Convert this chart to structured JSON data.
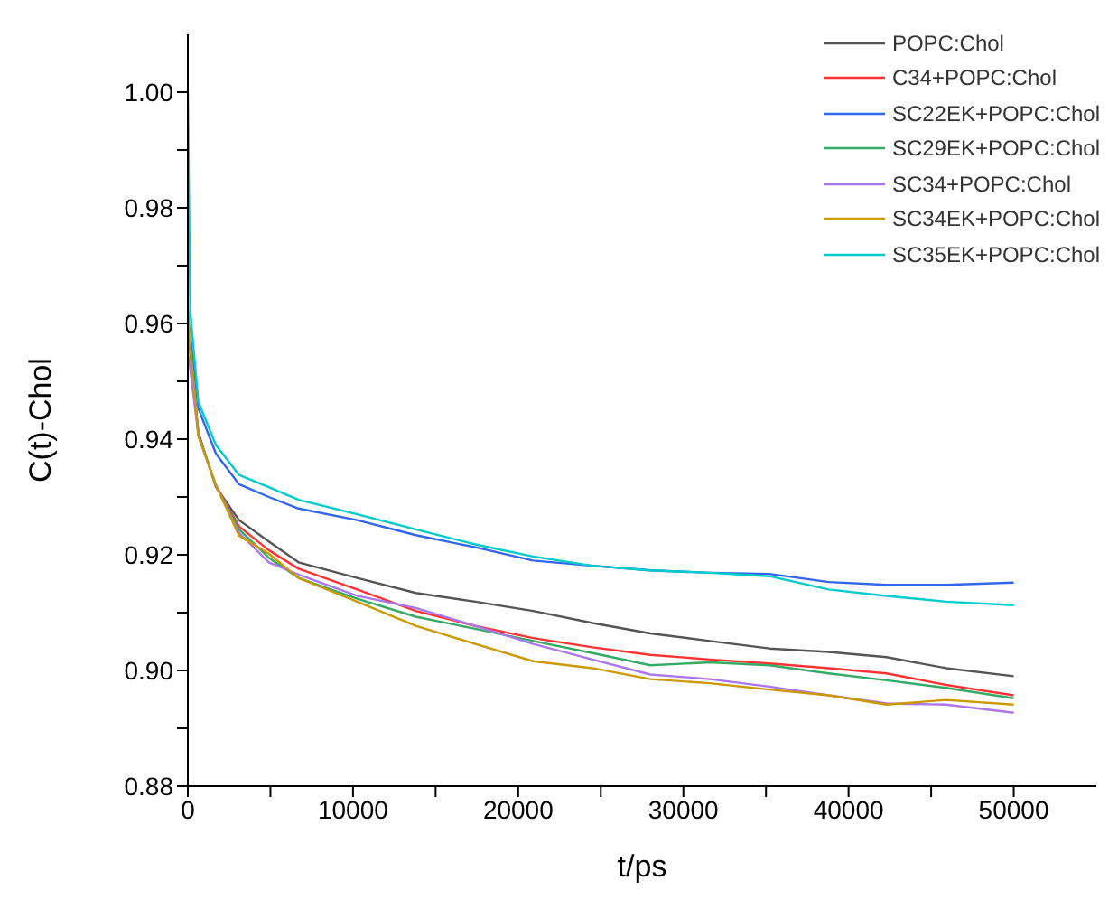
{
  "chart_data": {
    "type": "line",
    "xlabel": "t/ps",
    "ylabel": "C(t)-Chol",
    "x": [
      0,
      150,
      640,
      1700,
      3100,
      4900,
      6700,
      10250,
      13800,
      17400,
      20900,
      24500,
      28000,
      31600,
      35200,
      38800,
      42300,
      45900,
      50000
    ],
    "series": [
      {
        "name": "POPC:Chol",
        "color": "#555555",
        "values": [
          0.96,
          0.955,
          0.9411,
          0.9317,
          0.926,
          0.9223,
          0.9187,
          0.916,
          0.9134,
          0.9119,
          0.9103,
          0.9082,
          0.9064,
          0.9051,
          0.9038,
          0.9032,
          0.9023,
          0.9004,
          0.899
        ]
      },
      {
        "name": "C34+POPC:Chol",
        "color": "#ff3333",
        "values": [
          null,
          null,
          null,
          0.932,
          0.9249,
          0.9208,
          0.9176,
          0.914,
          0.9103,
          0.9077,
          0.9056,
          0.904,
          0.9027,
          0.9019,
          0.9012,
          0.9004,
          0.8995,
          0.8975,
          0.8957
        ]
      },
      {
        "name": "SC22EK+POPC:Chol",
        "color": "#3366ee",
        "values": [
          0.961,
          0.958,
          0.9453,
          0.9375,
          0.9322,
          0.93,
          0.928,
          0.926,
          0.9234,
          0.9213,
          0.919,
          0.9181,
          0.9173,
          0.9169,
          0.9167,
          0.9153,
          0.9148,
          0.9148,
          0.9152
        ]
      },
      {
        "name": "SC29EK+POPC:Chol",
        "color": "#33aa66",
        "values": [
          0.958,
          0.955,
          0.9406,
          0.932,
          0.9244,
          0.9195,
          0.916,
          0.9124,
          0.9093,
          0.9072,
          0.9051,
          0.903,
          0.9009,
          0.9014,
          0.9009,
          0.8995,
          0.8983,
          0.897,
          0.8952
        ]
      },
      {
        "name": "SC34+POPC:Chol",
        "color": "#aa77ee",
        "values": [
          0.955,
          0.952,
          0.9406,
          0.932,
          0.9238,
          0.9187,
          0.9166,
          0.9129,
          0.9108,
          0.9077,
          0.9046,
          0.9019,
          0.8993,
          0.8985,
          0.8972,
          0.8957,
          0.8943,
          0.8941,
          0.8927
        ]
      },
      {
        "name": "SC34EK+POPC:Chol",
        "color": "#cc9900",
        "values": [
          0.963,
          0.956,
          0.9406,
          0.932,
          0.9233,
          0.9202,
          0.916,
          0.9119,
          0.9077,
          0.9046,
          0.9016,
          0.9004,
          0.8985,
          0.8978,
          0.8967,
          0.8957,
          0.8941,
          0.8949,
          0.8941
        ]
      },
      {
        "name": "SC35EK+POPC:Chol",
        "color": "#00cccc",
        "values": [
          1.0,
          0.962,
          0.9464,
          0.939,
          0.9338,
          0.9317,
          0.9295,
          0.927,
          0.9244,
          0.9218,
          0.9197,
          0.9181,
          0.9173,
          0.9169,
          0.9163,
          0.914,
          0.9129,
          0.9119,
          0.9113
        ]
      }
    ],
    "xlim": [
      0,
      55000
    ],
    "xticks": [
      0,
      {
        "value": 5000,
        "label": null
      },
      10000,
      {
        "value": 15000,
        "label": null
      },
      20000,
      {
        "value": 25000,
        "label": null
      },
      30000,
      {
        "value": 35000,
        "label": null
      },
      40000,
      {
        "value": 45000,
        "label": null
      },
      50000
    ],
    "ylim": [
      0.88,
      1.01
    ],
    "yticks": [
      {
        "value": 0.88,
        "label": "0.88"
      },
      {
        "value": 0.89,
        "label": null
      },
      {
        "value": 0.9,
        "label": "0.90"
      },
      {
        "value": 0.91,
        "label": null
      },
      {
        "value": 0.92,
        "label": "0.92"
      },
      {
        "value": 0.93,
        "label": null
      },
      {
        "value": 0.94,
        "label": "0.94"
      },
      {
        "value": 0.95,
        "label": null
      },
      {
        "value": 0.96,
        "label": "0.96"
      },
      {
        "value": 0.97,
        "label": null
      },
      {
        "value": 0.98,
        "label": "0.98"
      },
      {
        "value": 0.99,
        "label": null
      },
      {
        "value": 1.0,
        "label": "1.00"
      }
    ],
    "grid": false,
    "legend": "top right",
    "marker": "none",
    "line_style": "solid"
  }
}
